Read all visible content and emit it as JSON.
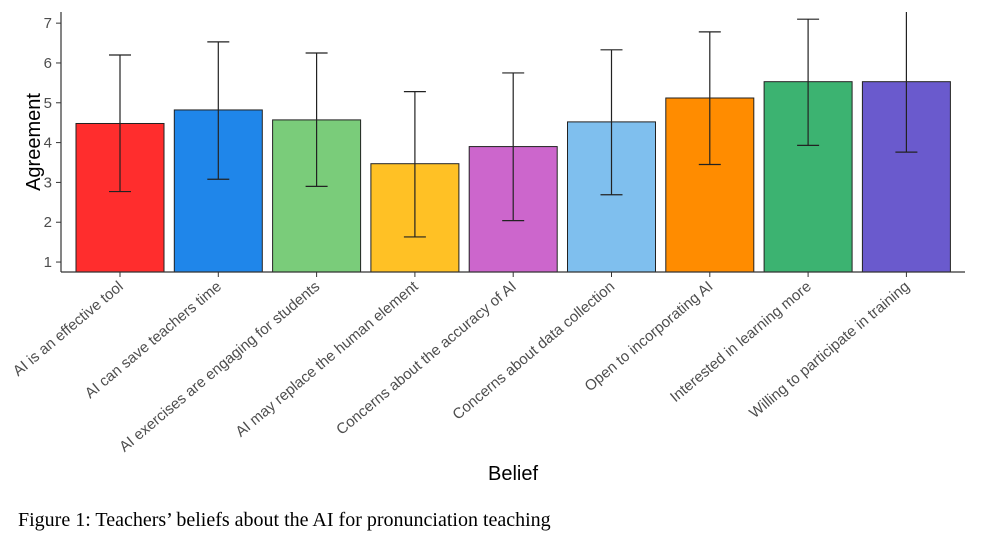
{
  "chart_data": {
    "type": "bar",
    "xlabel": "Belief",
    "ylabel": "Agreement",
    "ylim": [
      0.75,
      7.28
    ],
    "yticks": [
      1,
      2,
      3,
      4,
      5,
      6,
      7
    ],
    "grid": false,
    "categories": [
      "AI is an effective tool",
      "AI can save teachers time",
      "AI exercises are engaging for students",
      "AI may replace the human element",
      "Concerns about the accuracy of AI",
      "Concerns about data collection",
      "Open to incorporating AI",
      "Interested in learning more",
      "Willing to participate in training"
    ],
    "values": [
      4.48,
      4.82,
      4.57,
      3.47,
      3.9,
      4.52,
      5.12,
      5.53,
      5.53
    ],
    "error_upper": [
      6.2,
      6.53,
      6.25,
      5.28,
      5.75,
      6.33,
      6.78,
      7.1,
      7.3
    ],
    "error_lower": [
      2.77,
      3.08,
      2.9,
      1.63,
      2.04,
      2.69,
      3.45,
      3.93,
      3.76
    ],
    "colors": [
      "#ff2d2d",
      "#1f86ea",
      "#7acc7a",
      "#ffc125",
      "#cc66cc",
      "#7fbfee",
      "#ff8c00",
      "#3cb371",
      "#6a5acd"
    ]
  },
  "caption": "Figure 1: Teachers’ beliefs about the AI for pronunciation teaching"
}
